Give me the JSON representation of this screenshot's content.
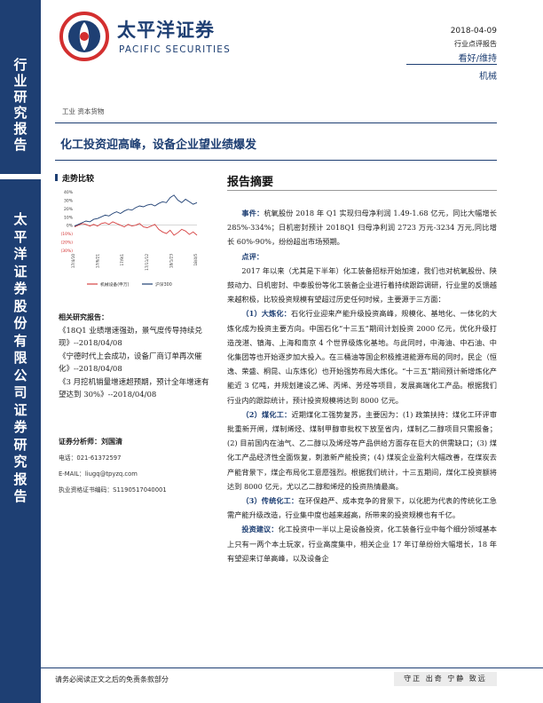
{
  "sidebar": {
    "category": "行业研究报告",
    "company": "太平洋证券股份有限公司证券研究报告"
  },
  "logo": {
    "cn": "太平洋证券",
    "en": "PACIFIC SECURITIES"
  },
  "header": {
    "date": "2018-04-09",
    "report_type": "行业点评报告",
    "rating": "看好/维持",
    "industry": "机械"
  },
  "path": "工业 资本货物",
  "title": "化工投资迎高峰，设备企业望业绩爆发",
  "trend": {
    "heading": "走势比较"
  },
  "chart_data": {
    "type": "line",
    "title": "",
    "ylabel": "",
    "xlabel": "",
    "y_ticks": [
      "40%",
      "30%",
      "20%",
      "10%",
      "0%",
      "(10%)",
      "(20%)",
      "(30%)"
    ],
    "ylim": [
      -30,
      40
    ],
    "x_ticks": [
      "17/4/10",
      "17/6/21",
      "17/9/1",
      "17/11/12",
      "18/1/23",
      "18/4/5"
    ],
    "series": [
      {
        "name": "机械设备(申万)",
        "color": "#d64242",
        "values": [
          -2,
          0,
          2,
          1,
          -1,
          1,
          -1,
          2,
          3,
          1,
          4,
          2,
          0,
          -2,
          1,
          -1,
          0,
          2,
          -2,
          -3,
          -1,
          1,
          -5,
          -8,
          -10,
          -6,
          -12,
          -9,
          -5,
          -7,
          -11,
          -8,
          -12
        ]
      },
      {
        "name": "沪深300",
        "color": "#1e3f73",
        "values": [
          -1,
          1,
          3,
          5,
          4,
          7,
          8,
          10,
          12,
          11,
          14,
          16,
          14,
          17,
          19,
          18,
          21,
          23,
          22,
          24,
          25,
          23,
          26,
          28,
          27,
          33,
          36,
          30,
          27,
          31,
          28,
          25,
          27
        ]
      }
    ],
    "legend": "bottom"
  },
  "related": {
    "heading": "相关研究报告：",
    "items": [
      "《18Q1 业绩增速强劲，景气度传导持续兑现》--2018/04/08",
      "《宁德时代上会成功，设备厂商订单再次催化》--2018/04/08",
      "《3 月挖机销量增速超预期，预计全年增速有望达到 30%》--2018/04/08"
    ]
  },
  "analyst": {
    "heading": "证券分析师：刘国清",
    "phone": "电话：021-61372597",
    "email": "E-MAIL：liugq@tpyzq.com",
    "license": "执业资格证书编码：S1190517040001"
  },
  "summary": {
    "heading": "报告摘要",
    "event_label": "事件：",
    "event_text": "杭氧股份 2018 年 Q1 实现归母净利润 1.49-1.68 亿元，同比大幅增长 285%-334%；日机密封预计 2018Q1 归母净利润 2723 万元-3234 万元,同比增长 60%-90%，纷纷超出市场预期。",
    "comment_label": "点评：",
    "intro": "2017 年以来（尤其是下半年）化工装备招标开始加速，我们也对杭氧股份、陕鼓动力、日机密封、中泰股份等化工装备企业进行着持续跟踪调研，行业里的反馈越来越积极，比较投资规模有望超过历史任何时候，主要源于三方面：",
    "p1_label": "（1）大炼化：",
    "p1_text": "石化行业迎来产能升级投资高峰，规模化、基地化、一体化的大炼化成为投资主要方向。中国石化“十三五”期间计划投资 2000 亿元，优化升级打造茂湛、镇海、上海和南京 4 个世界级炼化基地。与此同时，中海油、中石油、中化集团等也开始逐步加大投入。在三桶油等国企积极推进能源布局的同时，民企（恒逸、荣盛、桐昆、山东炼化）也开始强势布局大炼化。“十三五”期间预计新增炼化产能近 3 亿吨，并规划建设乙烯、丙烯、芳烃等项目，发展高端化工产品。根据我们行业内的跟踪统计，预计投资规模将达到 8000 亿元。",
    "p2_label": "（2）煤化工：",
    "p2_text": "近期煤化工强势复苏，主要因为：(1) 政策扶持：煤化工环评审批重新开闸，煤制烯烃、煤制甲醇审批权下放至省内，煤制乙二醇项目只需报备；(2) 目前国内在油气、乙二醇以及烯烃等产品供给方面存在巨大的供需缺口；(3) 煤化工产品经济性全面恢复，刺激新产能投资；(4) 煤炭企业盈利大幅改善，在煤炭去产能背景下，煤企布局化工意愿强烈。根据我们统计，十三五期间，煤化工投资额将达到 8000 亿元，尤以乙二醇和烯烃的投资热情最高。",
    "p3_label": "（3）传统化工：",
    "p3_text": "在环保趋严、成本竞争的背景下，以化肥为代表的传统化工急需产能升级改造，行业集中度也越来越高，所带来的投资规模也有千亿。",
    "advice_label": "投资建议：",
    "advice_text": "化工投资中一半以上是设备投资，化工装备行业中每个细分领域基本上只有一两个本土玩家，行业高度集中，相关企业 17 年订单纷纷大幅增长，18 年有望迎来订单高峰，以及设备企"
  },
  "footer": {
    "note": "请务必阅读正文之后的免责条款部分",
    "slogan": "守正 出奇 宁静 致远"
  }
}
